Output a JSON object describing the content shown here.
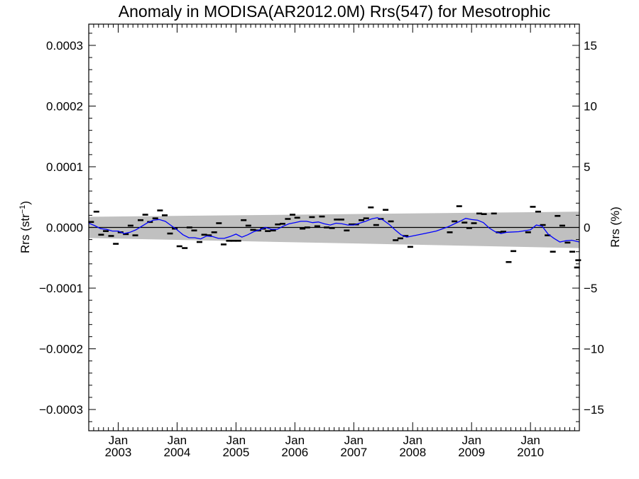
{
  "chart_data": {
    "type": "scatter",
    "title": "Anomaly in MODISA(AR2012.0M) Rrs(547) for Mesotrophic",
    "ylabel_left": {
      "main": "Rrs (str",
      "sup": "−1",
      "close": ")"
    },
    "ylabel_right": "Rrs (%)",
    "xlim": [
      2002.5,
      2010.83
    ],
    "ylim": [
      -0.000335,
      0.000335
    ],
    "ylim_right": [
      -16.75,
      16.75
    ],
    "x_ticks": [
      {
        "value": 2003.0,
        "month": "Jan",
        "year": "2003"
      },
      {
        "value": 2004.0,
        "month": "Jan",
        "year": "2004"
      },
      {
        "value": 2005.0,
        "month": "Jan",
        "year": "2005"
      },
      {
        "value": 2006.0,
        "month": "Jan",
        "year": "2006"
      },
      {
        "value": 2007.0,
        "month": "Jan",
        "year": "2007"
      },
      {
        "value": 2008.0,
        "month": "Jan",
        "year": "2008"
      },
      {
        "value": 2009.0,
        "month": "Jan",
        "year": "2009"
      },
      {
        "value": 2010.0,
        "month": "Jan",
        "year": "2010"
      }
    ],
    "y_ticks_left": [
      {
        "value": 0.0003,
        "label": "0.0003"
      },
      {
        "value": 0.0002,
        "label": "0.0002"
      },
      {
        "value": 0.0001,
        "label": "0.0001"
      },
      {
        "value": 0.0,
        "label": "0.0000"
      },
      {
        "value": -0.0001,
        "label": "−0.0001"
      },
      {
        "value": -0.0002,
        "label": "−0.0002"
      },
      {
        "value": -0.0003,
        "label": "−0.0003"
      }
    ],
    "y_ticks_right": [
      {
        "value": 15,
        "label": "15"
      },
      {
        "value": 10,
        "label": "10"
      },
      {
        "value": 5,
        "label": "5"
      },
      {
        "value": 0,
        "label": "0"
      },
      {
        "value": -5,
        "label": "−5"
      },
      {
        "value": -10,
        "label": "−10"
      },
      {
        "value": -15,
        "label": "−15"
      }
    ],
    "band": {
      "color": "#c0c0c0",
      "start": {
        "x": 2002.5,
        "upper": 1.75e-05,
        "lower": -1.75e-05
      },
      "end": {
        "x": 2010.83,
        "upper": 2.6e-05,
        "lower": -3.4e-05
      }
    },
    "zero_line": 0.0,
    "series": [
      {
        "kind": "monthly-anomaly",
        "color": "#000000",
        "marker": "dash",
        "points": [
          [
            2002.54,
            9e-06
          ],
          [
            2002.63,
            2.6e-05
          ],
          [
            2002.71,
            -1.2e-05
          ],
          [
            2002.79,
            -6e-06
          ],
          [
            2002.88,
            -1.4e-05
          ],
          [
            2002.96,
            -2.7e-05
          ],
          [
            2003.04,
            -8e-06
          ],
          [
            2003.13,
            -1.1e-05
          ],
          [
            2003.21,
            3e-06
          ],
          [
            2003.29,
            -1.3e-05
          ],
          [
            2003.38,
            1.2e-05
          ],
          [
            2003.46,
            2.1e-05
          ],
          [
            2003.54,
            9e-06
          ],
          [
            2003.63,
            1.5e-05
          ],
          [
            2003.71,
            2.8e-05
          ],
          [
            2003.79,
            2e-05
          ],
          [
            2003.88,
            -1e-05
          ],
          [
            2003.96,
            -2e-06
          ],
          [
            2004.04,
            -3.1e-05
          ],
          [
            2004.13,
            -3.4e-05
          ],
          [
            2004.21,
            0.0
          ],
          [
            2004.29,
            -5e-06
          ],
          [
            2004.38,
            -2.4e-05
          ],
          [
            2004.46,
            -1.2e-05
          ],
          [
            2004.54,
            -1.3e-05
          ],
          [
            2004.63,
            -8e-06
          ],
          [
            2004.71,
            7e-06
          ],
          [
            2004.79,
            -2.8e-05
          ],
          [
            2004.88,
            -2.2e-05
          ],
          [
            2004.96,
            -2.2e-05
          ],
          [
            2005.04,
            -2.2e-05
          ],
          [
            2005.13,
            1.2e-05
          ],
          [
            2005.21,
            3e-06
          ],
          [
            2005.29,
            -4e-06
          ],
          [
            2005.38,
            -5e-06
          ],
          [
            2005.46,
            -2e-06
          ],
          [
            2005.54,
            -6e-06
          ],
          [
            2005.63,
            -5e-06
          ],
          [
            2005.71,
            5e-06
          ],
          [
            2005.79,
            6e-06
          ],
          [
            2005.88,
            1.4e-05
          ],
          [
            2005.96,
            2.1e-05
          ],
          [
            2006.04,
            1.6e-05
          ],
          [
            2006.13,
            -2e-06
          ],
          [
            2006.21,
            0.0
          ],
          [
            2006.29,
            1.7e-05
          ],
          [
            2006.38,
            2e-06
          ],
          [
            2006.46,
            1.8e-05
          ],
          [
            2006.54,
            0.0
          ],
          [
            2006.63,
            -1e-06
          ],
          [
            2006.71,
            1.3e-05
          ],
          [
            2006.79,
            1.3e-05
          ],
          [
            2006.88,
            -5e-06
          ],
          [
            2006.96,
            5e-06
          ],
          [
            2007.04,
            5e-06
          ],
          [
            2007.13,
            1.2e-05
          ],
          [
            2007.21,
            1.5e-05
          ],
          [
            2007.29,
            3.3e-05
          ],
          [
            2007.38,
            4e-06
          ],
          [
            2007.46,
            1.4e-05
          ],
          [
            2007.54,
            2.9e-05
          ],
          [
            2007.63,
            1e-05
          ],
          [
            2007.71,
            -2.1e-05
          ],
          [
            2007.79,
            -1.8e-05
          ],
          [
            2007.88,
            -1.4e-05
          ],
          [
            2007.96,
            -3.2e-05
          ],
          [
            2008.63,
            -8e-06
          ],
          [
            2008.71,
            1e-05
          ],
          [
            2008.79,
            3.5e-05
          ],
          [
            2008.88,
            8e-06
          ],
          [
            2008.96,
            -1e-06
          ],
          [
            2009.04,
            7e-06
          ],
          [
            2009.13,
            2.3e-05
          ],
          [
            2009.21,
            2.2e-05
          ],
          [
            2009.38,
            2.3e-05
          ],
          [
            2009.46,
            -8e-06
          ],
          [
            2009.54,
            -7e-06
          ],
          [
            2009.63,
            -5.7e-05
          ],
          [
            2009.71,
            -3.9e-05
          ],
          [
            2009.96,
            -8e-06
          ],
          [
            2010.04,
            3.4e-05
          ],
          [
            2010.13,
            2.6e-05
          ],
          [
            2010.21,
            4e-06
          ],
          [
            2010.29,
            -1.3e-05
          ],
          [
            2010.38,
            -4e-05
          ],
          [
            2010.46,
            1.9e-05
          ],
          [
            2010.54,
            3e-06
          ],
          [
            2010.63,
            -2.5e-05
          ],
          [
            2010.71,
            -4e-05
          ],
          [
            2010.79,
            -6.6e-05
          ],
          [
            2010.81,
            -5.4e-05
          ]
        ]
      },
      {
        "kind": "running-mean",
        "color": "#0000ff",
        "marker": "line",
        "points": [
          [
            2002.5,
            7e-06
          ],
          [
            2002.6,
            3e-06
          ],
          [
            2002.7,
            -2e-06
          ],
          [
            2002.8,
            -3e-06
          ],
          [
            2002.9,
            -6e-06
          ],
          [
            2003.0,
            -6e-06
          ],
          [
            2003.1,
            -1e-05
          ],
          [
            2003.2,
            -8e-06
          ],
          [
            2003.3,
            -4e-06
          ],
          [
            2003.4,
            2e-06
          ],
          [
            2003.5,
            8e-06
          ],
          [
            2003.6,
            1.2e-05
          ],
          [
            2003.7,
            1.3e-05
          ],
          [
            2003.8,
            1e-05
          ],
          [
            2003.9,
            3e-06
          ],
          [
            2004.0,
            -4e-06
          ],
          [
            2004.1,
            -1.2e-05
          ],
          [
            2004.2,
            -1.7e-05
          ],
          [
            2004.3,
            -1.7e-05
          ],
          [
            2004.4,
            -1.9e-05
          ],
          [
            2004.5,
            -1.4e-05
          ],
          [
            2004.6,
            -1.5e-05
          ],
          [
            2004.7,
            -1.8e-05
          ],
          [
            2004.8,
            -1.8e-05
          ],
          [
            2004.9,
            -1.5e-05
          ],
          [
            2005.0,
            -1.1e-05
          ],
          [
            2005.1,
            -1.6e-05
          ],
          [
            2005.2,
            -1.2e-05
          ],
          [
            2005.3,
            -7e-06
          ],
          [
            2005.4,
            -4e-06
          ],
          [
            2005.5,
            0.0
          ],
          [
            2005.6,
            -3e-06
          ],
          [
            2005.7,
            -3e-06
          ],
          [
            2005.8,
            2e-06
          ],
          [
            2005.9,
            6e-06
          ],
          [
            2006.0,
            8e-06
          ],
          [
            2006.1,
            1e-05
          ],
          [
            2006.2,
            1e-05
          ],
          [
            2006.3,
            8e-06
          ],
          [
            2006.4,
            9e-06
          ],
          [
            2006.5,
            6e-06
          ],
          [
            2006.6,
            4e-06
          ],
          [
            2006.7,
            7e-06
          ],
          [
            2006.8,
            6e-06
          ],
          [
            2006.9,
            4e-06
          ],
          [
            2007.0,
            4e-06
          ],
          [
            2007.1,
            7e-06
          ],
          [
            2007.2,
            1e-05
          ],
          [
            2007.3,
            1.4e-05
          ],
          [
            2007.4,
            1.6e-05
          ],
          [
            2007.5,
            1.2e-05
          ],
          [
            2007.6,
            5e-06
          ],
          [
            2007.7,
            -4e-06
          ],
          [
            2007.8,
            -1.2e-05
          ],
          [
            2007.9,
            -1.6e-05
          ],
          [
            2008.0,
            -1.4e-05
          ],
          [
            2008.2,
            -1e-05
          ],
          [
            2008.4,
            -6e-06
          ],
          [
            2008.6,
            1e-06
          ],
          [
            2008.8,
            1e-05
          ],
          [
            2008.9,
            1.5e-05
          ],
          [
            2009.0,
            1.3e-05
          ],
          [
            2009.1,
            1.2e-05
          ],
          [
            2009.2,
            8e-06
          ],
          [
            2009.3,
            -1e-06
          ],
          [
            2009.4,
            -7e-06
          ],
          [
            2009.5,
            -1e-05
          ],
          [
            2009.6,
            -8e-06
          ],
          [
            2009.8,
            -7e-06
          ],
          [
            2010.0,
            -4e-06
          ],
          [
            2010.1,
            4e-06
          ],
          [
            2010.2,
            2e-06
          ],
          [
            2010.3,
            -1.1e-05
          ],
          [
            2010.4,
            -1.8e-05
          ],
          [
            2010.5,
            -2.4e-05
          ],
          [
            2010.6,
            -2.2e-05
          ],
          [
            2010.7,
            -2.1e-05
          ],
          [
            2010.83,
            -2.4e-05
          ]
        ]
      }
    ]
  }
}
